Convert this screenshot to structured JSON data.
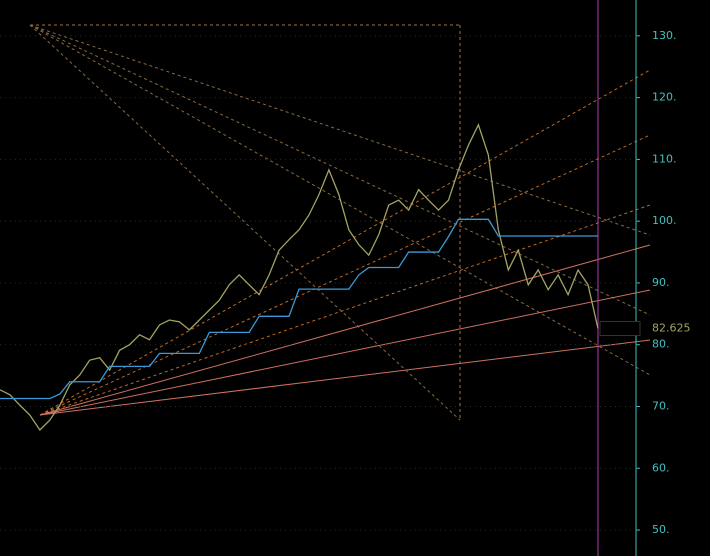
{
  "chart_data": {
    "type": "line",
    "categories": [
      null,
      null,
      null,
      null,
      null,
      null,
      null,
      null,
      null,
      null,
      null,
      null,
      null,
      null,
      null,
      null,
      null,
      null,
      null,
      null,
      null,
      null,
      null,
      null,
      null,
      null,
      null,
      null,
      null,
      null,
      null,
      null,
      null,
      null,
      null,
      null,
      null,
      null,
      null,
      null,
      null,
      null,
      null,
      null,
      null,
      null,
      null,
      null,
      null,
      null,
      null,
      null,
      null,
      null,
      null,
      null,
      null,
      null,
      null,
      null,
      null
    ],
    "series": [
      {
        "color": "#a3a363",
        "values": [
          72.7,
          71.9,
          70.2,
          68.6,
          66.2,
          67.8,
          70.2,
          73.5,
          75.1,
          77.5,
          77.9,
          75.9,
          79.1,
          80,
          81.6,
          80.8,
          83.2,
          84,
          83.7,
          82.4,
          84,
          85.6,
          87.2,
          89.7,
          91.3,
          89.7,
          88.1,
          91.3,
          95.3,
          97,
          98.6,
          101,
          104.3,
          108.3,
          104.3,
          98.6,
          96.2,
          94.5,
          97.8,
          102.6,
          103.4,
          101.8,
          105.1,
          103.4,
          101.8,
          103.4,
          108.3,
          112.3,
          115.6,
          110.7,
          98.6,
          92.1,
          95.3,
          89.7,
          92.1,
          88.9,
          91.3,
          88.1,
          92.1,
          89.7,
          82.625
        ]
      },
      {
        "color": "#3a9ad9",
        "values": [
          71.3,
          71.3,
          71.3,
          71.3,
          71.3,
          71.3,
          72,
          74,
          74,
          74,
          74,
          76.5,
          76.5,
          76.5,
          76.5,
          76.5,
          78.6,
          78.6,
          78.6,
          78.6,
          78.6,
          82,
          82,
          82,
          82,
          82,
          84.6,
          84.6,
          84.6,
          84.6,
          89,
          89,
          89,
          89,
          89,
          89,
          91.3,
          92.5,
          92.5,
          92.5,
          92.5,
          95,
          95,
          95,
          95,
          97.5,
          100.3,
          100.3,
          100.3,
          100.3,
          97.6,
          97.6,
          97.6,
          97.6,
          97.6,
          97.6,
          97.6,
          97.6,
          97.6,
          97.6,
          97.6
        ]
      }
    ],
    "ylim": [
      45.8,
      135.8
    ],
    "yticks": [
      {
        "value": 50,
        "label": "50."
      },
      {
        "value": 60,
        "label": "60."
      },
      {
        "value": 70,
        "label": "70."
      },
      {
        "value": 80,
        "label": "80."
      },
      {
        "value": 90,
        "label": "90."
      },
      {
        "value": 100,
        "label": "100."
      },
      {
        "value": 110,
        "label": "110."
      },
      {
        "value": 120,
        "label": "120."
      },
      {
        "value": 130,
        "label": "130."
      }
    ],
    "grid": true
  }
}
